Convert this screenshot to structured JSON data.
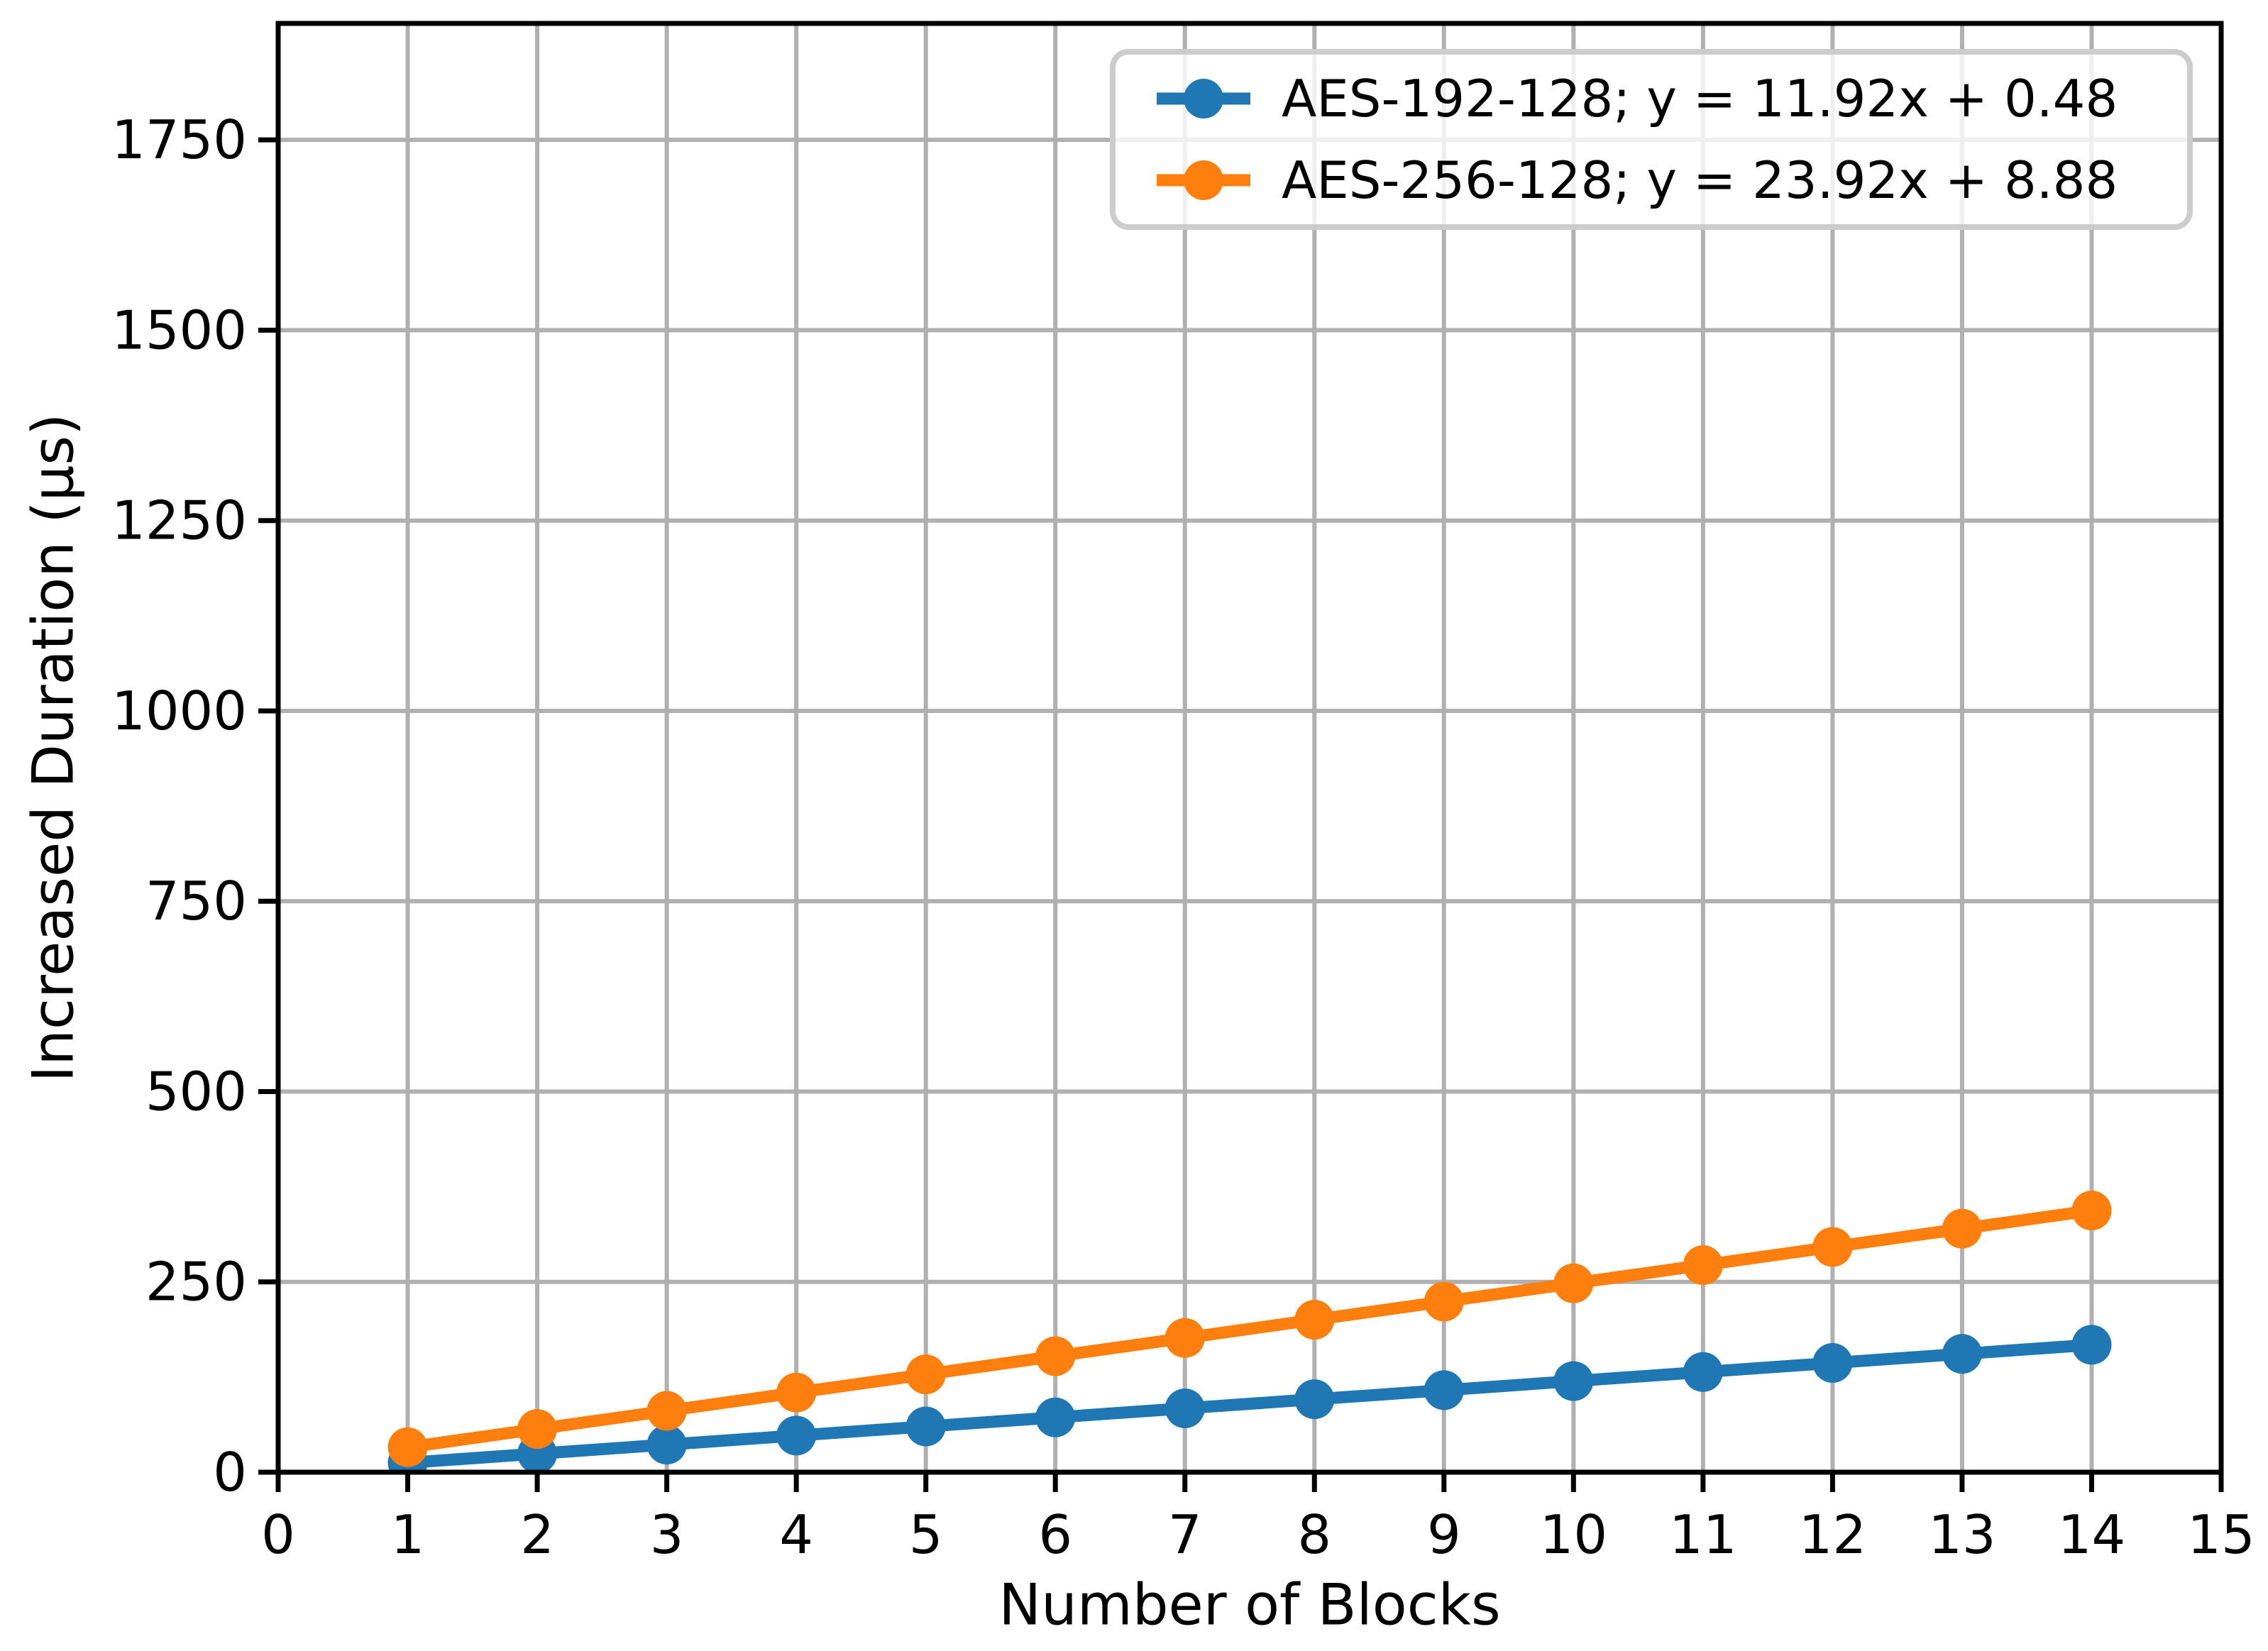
{
  "chart_data": {
    "type": "line",
    "title": "",
    "xlabel": "Number of Blocks",
    "ylabel": "Increased Duration (μs)",
    "x": [
      1,
      2,
      3,
      4,
      5,
      6,
      7,
      8,
      9,
      10,
      11,
      12,
      13,
      14
    ],
    "series": [
      {
        "name": "AES-192-128; y = 11.92x + 0.48",
        "color": "#1f77b4",
        "fit": {
          "slope": 11.92,
          "intercept": 0.48
        },
        "values": [
          12.4,
          24.32,
          36.24,
          48.16,
          60.08,
          72.0,
          83.92,
          95.84,
          107.76,
          119.68,
          131.6,
          143.52,
          155.44,
          167.36
        ]
      },
      {
        "name": "AES-256-128; y = 23.92x + 8.88",
        "color": "#ff7f0e",
        "fit": {
          "slope": 23.92,
          "intercept": 8.88
        },
        "values": [
          32.8,
          56.72,
          80.64,
          104.56,
          128.48,
          152.4,
          176.32,
          200.24,
          224.16,
          248.08,
          272.0,
          295.92,
          319.84,
          343.76
        ]
      }
    ],
    "xlim": [
      0,
      15
    ],
    "ylim": [
      0,
      1903
    ],
    "xticks": [
      0,
      1,
      2,
      3,
      4,
      5,
      6,
      7,
      8,
      9,
      10,
      11,
      12,
      13,
      14,
      15
    ],
    "yticks": [
      0,
      250,
      500,
      750,
      1000,
      1250,
      1500,
      1750
    ],
    "grid": true,
    "grid_color": "#b0b0b0",
    "axis_color": "#000000",
    "tick_label_color": "#000000",
    "background_color": "#ffffff",
    "legend": {
      "position": "upper right",
      "border_color": "#cccccc",
      "entries": [
        "AES-192-128; y = 11.92x + 0.48",
        "AES-256-128; y = 23.92x + 8.88"
      ]
    }
  }
}
